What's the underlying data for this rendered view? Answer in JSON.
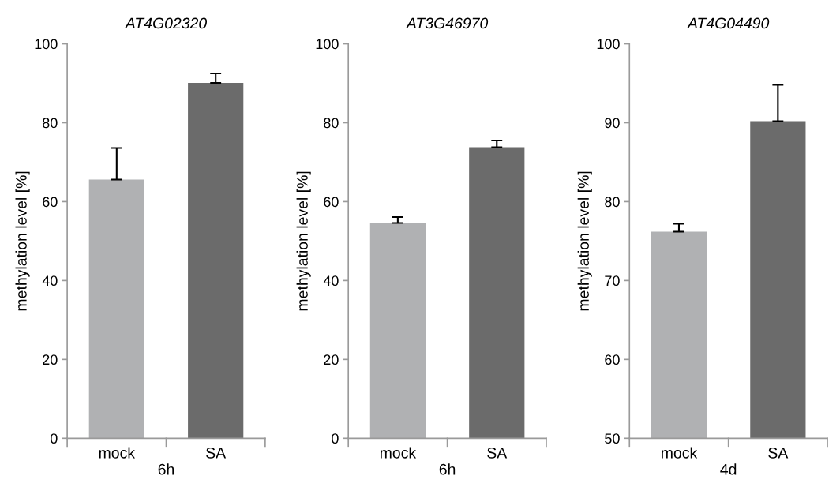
{
  "chart_data": [
    {
      "type": "bar",
      "title": "AT4G02320",
      "xlabel": "6h",
      "ylabel": "methylation level [%]",
      "categories": [
        "mock",
        "SA"
      ],
      "values": [
        65.6,
        90.1
      ],
      "colors": [
        "#b0b1b3",
        "#6b6b6b"
      ],
      "errors": [
        [
          65.6,
          73.6
        ],
        [
          90.1,
          92.5
        ]
      ],
      "ylim": [
        0,
        100
      ],
      "yticks": [
        0,
        20,
        40,
        60,
        80,
        100
      ],
      "grid": false,
      "legend": false
    },
    {
      "type": "bar",
      "title": "AT3G46970",
      "xlabel": "6h",
      "ylabel": "methylation level [%]",
      "categories": [
        "mock",
        "SA"
      ],
      "values": [
        54.6,
        73.8
      ],
      "colors": [
        "#b0b1b3",
        "#6b6b6b"
      ],
      "errors": [
        [
          54.6,
          56.1
        ],
        [
          73.8,
          75.5
        ]
      ],
      "ylim": [
        0,
        100
      ],
      "yticks": [
        0,
        20,
        40,
        60,
        80,
        100
      ],
      "grid": false,
      "legend": false
    },
    {
      "type": "bar",
      "title": "AT4G04490",
      "xlabel": "4d",
      "ylabel": "methylation level [%]",
      "categories": [
        "mock",
        "SA"
      ],
      "values": [
        76.2,
        90.2
      ],
      "colors": [
        "#b0b1b3",
        "#6b6b6b"
      ],
      "errors": [
        [
          76.2,
          77.2
        ],
        [
          90.2,
          94.8
        ]
      ],
      "ylim": [
        50,
        100
      ],
      "yticks": [
        50,
        60,
        70,
        80,
        90,
        100
      ],
      "grid": false,
      "legend": false
    }
  ]
}
